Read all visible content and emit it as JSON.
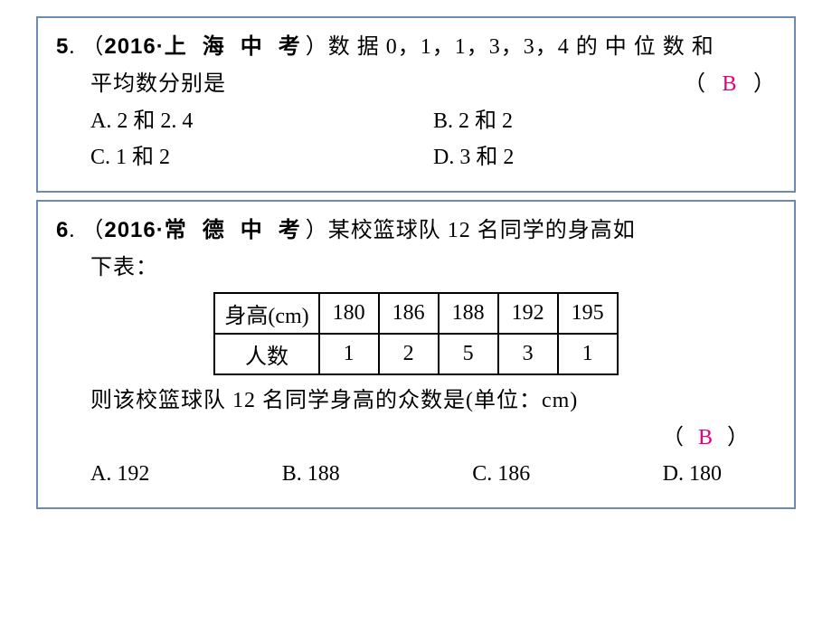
{
  "q5": {
    "number": "5",
    "source_prefix": "（",
    "source_year": "2016",
    "source_dot": "·",
    "source_place": "上 海 中 考",
    "source_suffix": "）",
    "text_part1": "数 据 0，1，1，3，3，4 的 中 位 数 和",
    "text_line2": "平均数分别是",
    "paren_open": "（",
    "answer": "B",
    "paren_close": "）",
    "opt_a": "A. 2 和 2. 4",
    "opt_b": "B. 2 和 2",
    "opt_c": "C. 1 和 2",
    "opt_d": "D. 3 和 2"
  },
  "q6": {
    "number": "6",
    "source_prefix": "（",
    "source_year": "2016",
    "source_dot": "·",
    "source_place": "常 德 中 考",
    "source_suffix": "）",
    "text_part1": "某校篮球队 12 名同学的身高如",
    "text_line2": "下表：",
    "table": {
      "row1_label": "身高(cm)",
      "row1_values": [
        "180",
        "186",
        "188",
        "192",
        "195"
      ],
      "row2_label": "人数",
      "row2_values": [
        "1",
        "2",
        "5",
        "3",
        "1"
      ]
    },
    "text_after": "则该校篮球队 12 名同学身高的众数是(单位：cm)",
    "paren_open": "（",
    "answer": "B",
    "paren_close": "）",
    "opt_a": "A. 192",
    "opt_b": "B. 188",
    "opt_c": "C. 186",
    "opt_d": "D. 180"
  },
  "colors": {
    "border": "#6b8cae",
    "answer": "#e6007e",
    "text": "#000000",
    "bg": "#ffffff"
  }
}
